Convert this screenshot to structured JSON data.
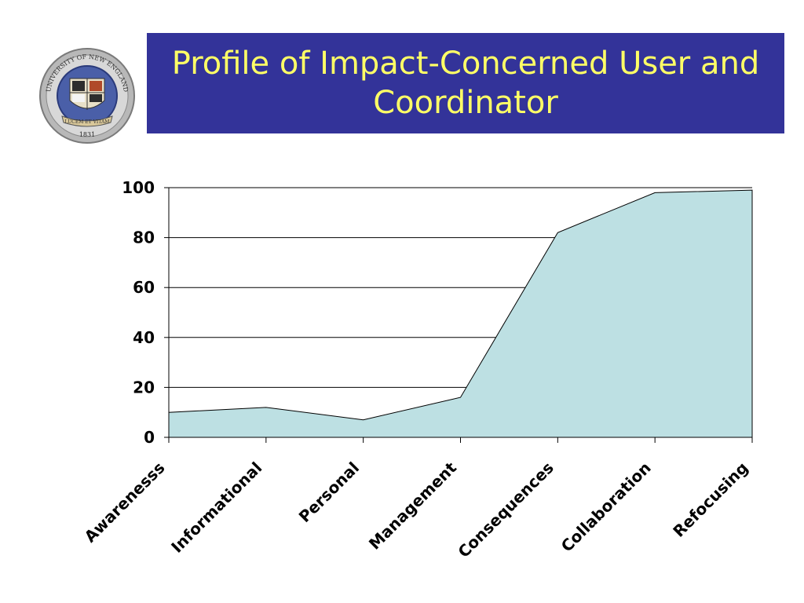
{
  "slide": {
    "title": "Profile of Impact-Concerned User and Coordinator"
  },
  "logo": {
    "ring_text": "UNIVERSITY OF NEW ENGLAND",
    "ribbon_text": "LUCEM ET VITAM",
    "year": "1831"
  },
  "colors": {
    "title_background": "#333399",
    "title_text": "#ffff66",
    "area_fill": "#bde0e3"
  },
  "chart_data": {
    "type": "area",
    "categories": [
      "Awarenesss",
      "Informational",
      "Personal",
      "Management",
      "Consequences",
      "Collaboration",
      "Refocusing"
    ],
    "values": [
      10,
      12,
      7,
      16,
      82,
      98,
      99
    ],
    "ylim": [
      0,
      100
    ],
    "yticks": [
      0,
      20,
      40,
      60,
      80,
      100
    ],
    "grid": "horizontal",
    "legend": "none"
  }
}
